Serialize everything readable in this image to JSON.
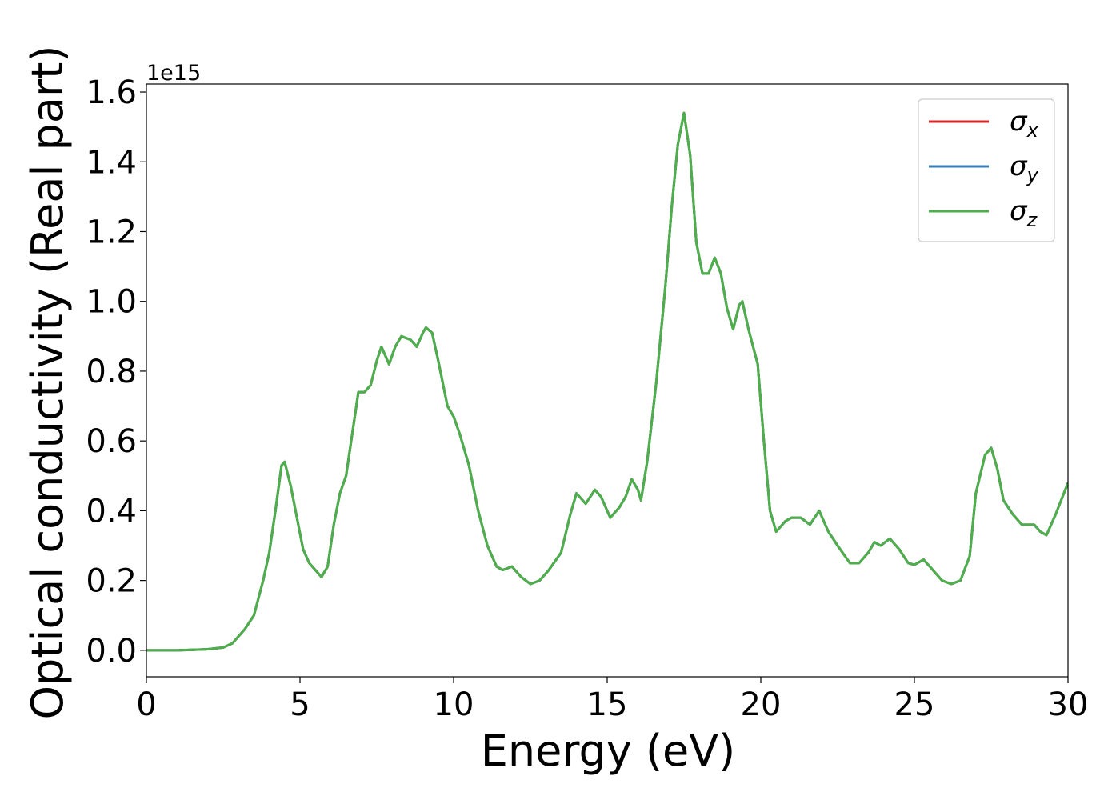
{
  "chart_data": {
    "type": "line",
    "xlabel": "Energy (eV)",
    "ylabel": "Optical conductivity (Real part)",
    "y_offset_label": "1e15",
    "x": [
      0,
      1,
      2,
      2.5,
      2.8,
      3.0,
      3.2,
      3.5,
      3.8,
      4.0,
      4.2,
      4.4,
      4.5,
      4.7,
      4.9,
      5.1,
      5.3,
      5.5,
      5.7,
      5.9,
      6.1,
      6.3,
      6.5,
      6.7,
      6.9,
      7.1,
      7.3,
      7.5,
      7.65,
      7.9,
      8.1,
      8.3,
      8.6,
      8.8,
      9.0,
      9.1,
      9.3,
      9.5,
      9.8,
      10.0,
      10.2,
      10.5,
      10.8,
      11.1,
      11.4,
      11.6,
      11.9,
      12.2,
      12.5,
      12.8,
      13.1,
      13.5,
      13.8,
      14.0,
      14.3,
      14.6,
      14.8,
      15.1,
      15.4,
      15.6,
      15.8,
      16.0,
      16.1,
      16.3,
      16.6,
      16.9,
      17.1,
      17.3,
      17.5,
      17.7,
      17.9,
      18.1,
      18.3,
      18.5,
      18.7,
      18.9,
      19.1,
      19.3,
      19.4,
      19.6,
      19.9,
      20.1,
      20.3,
      20.5,
      20.8,
      21.0,
      21.3,
      21.6,
      21.9,
      22.2,
      22.5,
      22.9,
      23.2,
      23.5,
      23.7,
      23.9,
      24.2,
      24.5,
      24.8,
      25.0,
      25.3,
      25.6,
      25.9,
      26.2,
      26.5,
      26.8,
      27.0,
      27.3,
      27.5,
      27.7,
      27.9,
      28.2,
      28.5,
      28.9,
      29.1,
      29.3,
      29.6,
      30.0
    ],
    "series": [
      {
        "name": "σx",
        "color": "#d62728",
        "values": [
          0,
          0,
          0.003,
          0.008,
          0.02,
          0.04,
          0.06,
          0.1,
          0.2,
          0.28,
          0.4,
          0.53,
          0.54,
          0.47,
          0.38,
          0.29,
          0.25,
          0.23,
          0.21,
          0.24,
          0.36,
          0.45,
          0.5,
          0.62,
          0.74,
          0.74,
          0.76,
          0.83,
          0.87,
          0.82,
          0.87,
          0.9,
          0.89,
          0.87,
          0.91,
          0.925,
          0.91,
          0.83,
          0.7,
          0.67,
          0.62,
          0.53,
          0.4,
          0.3,
          0.24,
          0.23,
          0.24,
          0.21,
          0.19,
          0.2,
          0.23,
          0.28,
          0.39,
          0.45,
          0.42,
          0.46,
          0.44,
          0.38,
          0.41,
          0.44,
          0.49,
          0.46,
          0.43,
          0.54,
          0.77,
          1.05,
          1.27,
          1.45,
          1.54,
          1.42,
          1.17,
          1.08,
          1.08,
          1.125,
          1.08,
          0.98,
          0.92,
          0.99,
          1.0,
          0.92,
          0.82,
          0.6,
          0.4,
          0.34,
          0.37,
          0.38,
          0.38,
          0.36,
          0.4,
          0.34,
          0.3,
          0.25,
          0.25,
          0.28,
          0.31,
          0.3,
          0.32,
          0.29,
          0.25,
          0.245,
          0.26,
          0.23,
          0.2,
          0.19,
          0.2,
          0.27,
          0.45,
          0.56,
          0.58,
          0.52,
          0.43,
          0.39,
          0.36,
          0.36,
          0.34,
          0.33,
          0.39,
          0.48
        ]
      },
      {
        "name": "σy",
        "color": "#377eb8",
        "values": [
          0,
          0,
          0.003,
          0.008,
          0.02,
          0.04,
          0.06,
          0.1,
          0.2,
          0.28,
          0.4,
          0.53,
          0.54,
          0.47,
          0.38,
          0.29,
          0.25,
          0.23,
          0.21,
          0.24,
          0.36,
          0.45,
          0.5,
          0.62,
          0.74,
          0.74,
          0.76,
          0.83,
          0.87,
          0.82,
          0.87,
          0.9,
          0.89,
          0.87,
          0.91,
          0.925,
          0.91,
          0.83,
          0.7,
          0.67,
          0.62,
          0.53,
          0.4,
          0.3,
          0.24,
          0.23,
          0.24,
          0.21,
          0.19,
          0.2,
          0.23,
          0.28,
          0.39,
          0.45,
          0.42,
          0.46,
          0.44,
          0.38,
          0.41,
          0.44,
          0.49,
          0.46,
          0.43,
          0.54,
          0.77,
          1.05,
          1.27,
          1.45,
          1.54,
          1.42,
          1.17,
          1.08,
          1.08,
          1.125,
          1.08,
          0.98,
          0.92,
          0.99,
          1.0,
          0.92,
          0.82,
          0.6,
          0.4,
          0.34,
          0.37,
          0.38,
          0.38,
          0.36,
          0.4,
          0.34,
          0.3,
          0.25,
          0.25,
          0.28,
          0.31,
          0.3,
          0.32,
          0.29,
          0.25,
          0.245,
          0.26,
          0.23,
          0.2,
          0.19,
          0.2,
          0.27,
          0.45,
          0.56,
          0.58,
          0.52,
          0.43,
          0.39,
          0.36,
          0.36,
          0.34,
          0.33,
          0.39,
          0.48
        ]
      },
      {
        "name": "σz",
        "color": "#4daf4a",
        "values": [
          0,
          0,
          0.003,
          0.008,
          0.02,
          0.04,
          0.06,
          0.1,
          0.2,
          0.28,
          0.4,
          0.53,
          0.54,
          0.47,
          0.38,
          0.29,
          0.25,
          0.23,
          0.21,
          0.24,
          0.36,
          0.45,
          0.5,
          0.62,
          0.74,
          0.74,
          0.76,
          0.83,
          0.87,
          0.82,
          0.87,
          0.9,
          0.89,
          0.87,
          0.91,
          0.925,
          0.91,
          0.83,
          0.7,
          0.67,
          0.62,
          0.53,
          0.4,
          0.3,
          0.24,
          0.23,
          0.24,
          0.21,
          0.19,
          0.2,
          0.23,
          0.28,
          0.39,
          0.45,
          0.42,
          0.46,
          0.44,
          0.38,
          0.41,
          0.44,
          0.49,
          0.46,
          0.43,
          0.54,
          0.77,
          1.05,
          1.27,
          1.45,
          1.54,
          1.42,
          1.17,
          1.08,
          1.08,
          1.125,
          1.08,
          0.98,
          0.92,
          0.99,
          1.0,
          0.92,
          0.82,
          0.6,
          0.4,
          0.34,
          0.37,
          0.38,
          0.38,
          0.36,
          0.4,
          0.34,
          0.3,
          0.25,
          0.25,
          0.28,
          0.31,
          0.3,
          0.32,
          0.29,
          0.25,
          0.245,
          0.26,
          0.23,
          0.2,
          0.19,
          0.2,
          0.27,
          0.45,
          0.56,
          0.58,
          0.52,
          0.43,
          0.39,
          0.36,
          0.36,
          0.34,
          0.33,
          0.39,
          0.48
        ]
      }
    ],
    "xlim": [
      0,
      30
    ],
    "xticks": [
      0,
      5,
      10,
      15,
      20,
      25,
      30
    ],
    "ylim": [
      -0.076,
      1.623
    ],
    "yticks": [
      {
        "value": 0,
        "label": "0.0"
      },
      0.2,
      0.4,
      0.6,
      0.8,
      {
        "value": 1,
        "label": "1.0"
      },
      1.2,
      1.4,
      1.6
    ],
    "grid": false,
    "legend": "upper right"
  }
}
